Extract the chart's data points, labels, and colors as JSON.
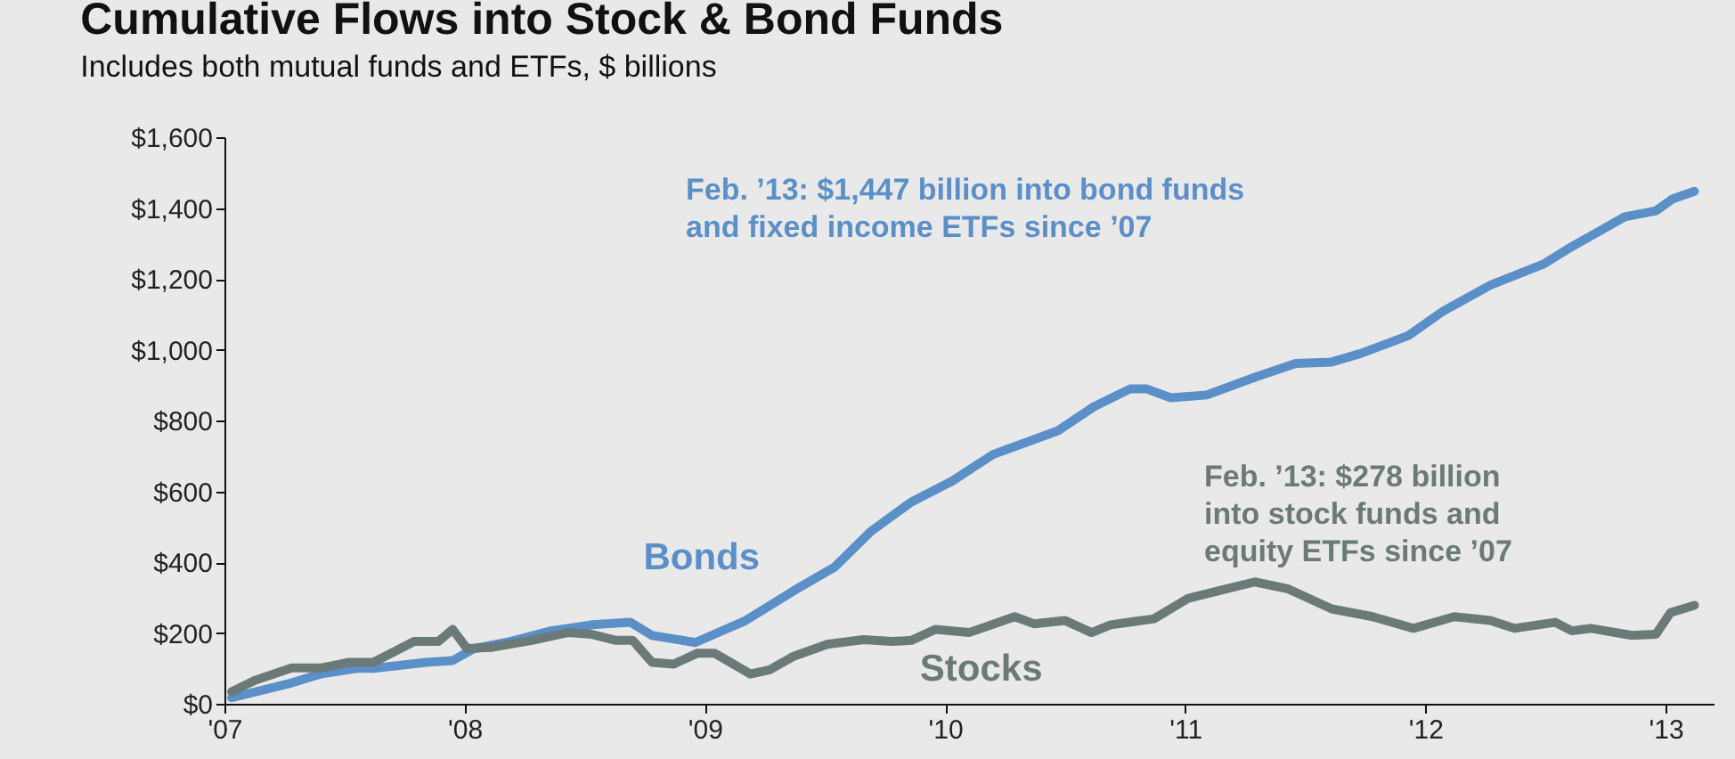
{
  "chart_data": {
    "type": "line",
    "title": "Cumulative Flows into Stock & Bond Funds",
    "subtitle": "Includes both mutual funds and ETFs, $ billions",
    "annotations": [
      "Feb. ’13: $1,447 billion into bond funds and fixed income ETFs since ’07",
      "Feb. ’13: $278 billion into stock funds and equity ETFs since ’07"
    ],
    "xlim": [
      2007,
      2013.2
    ],
    "xticks": [
      {
        "value": 2007,
        "label": "'07"
      },
      {
        "value": 2008,
        "label": "'08"
      },
      {
        "value": 2009,
        "label": "'09"
      },
      {
        "value": 2010,
        "label": "'10"
      },
      {
        "value": 2011,
        "label": "'11"
      },
      {
        "value": 2012,
        "label": "'12"
      },
      {
        "value": 2013,
        "label": "'13"
      }
    ],
    "ylim": [
      0,
      1600
    ],
    "yticks": [
      {
        "value": 0,
        "label": "$0"
      },
      {
        "value": 200,
        "label": "$200"
      },
      {
        "value": 400,
        "label": "$400"
      },
      {
        "value": 600,
        "label": "$600"
      },
      {
        "value": 800,
        "label": "$800"
      },
      {
        "value": 1000,
        "label": "$1,000"
      },
      {
        "value": 1200,
        "label": "$1,200"
      },
      {
        "value": 1400,
        "label": "$1,400"
      },
      {
        "value": 1600,
        "label": "$1,600"
      }
    ],
    "grid": false,
    "legend": false,
    "line_style": "solid",
    "marker": "none",
    "series": [
      {
        "name": "Bonds",
        "color": "#5b8fc7",
        "x": [
          2007.03,
          2007.28,
          2007.4,
          2007.55,
          2007.62,
          2007.84,
          2007.95,
          2008.04,
          2008.19,
          2008.36,
          2008.53,
          2008.69,
          2008.78,
          2008.96,
          2009.17,
          2009.37,
          2009.54,
          2009.69,
          2009.86,
          2010.03,
          2010.2,
          2010.47,
          2010.62,
          2010.77,
          2010.84,
          2010.94,
          2011.09,
          2011.29,
          2011.46,
          2011.61,
          2011.73,
          2011.93,
          2012.07,
          2012.27,
          2012.49,
          2012.61,
          2012.83,
          2012.96,
          2013.03,
          2013.12
        ],
        "values": [
          17,
          59,
          84,
          100,
          100,
          117,
          122,
          156,
          176,
          206,
          223,
          230,
          193,
          173,
          235,
          319,
          386,
          486,
          570,
          629,
          704,
          771,
          839,
          889,
          889,
          864,
          872,
          922,
          961,
          965,
          989,
          1040,
          1107,
          1182,
          1241,
          1291,
          1375,
          1392,
          1426,
          1447
        ]
      },
      {
        "name": "Stocks",
        "color": "#6b7a78",
        "x": [
          2007.03,
          2007.13,
          2007.28,
          2007.4,
          2007.52,
          2007.62,
          2007.79,
          2007.89,
          2007.95,
          2008.01,
          2008.11,
          2008.28,
          2008.43,
          2008.53,
          2008.63,
          2008.7,
          2008.78,
          2008.87,
          2008.97,
          2009.04,
          2009.19,
          2009.27,
          2009.37,
          2009.51,
          2009.66,
          2009.78,
          2009.86,
          2009.96,
          2010.1,
          2010.29,
          2010.37,
          2010.5,
          2010.61,
          2010.69,
          2010.87,
          2011.01,
          2011.14,
          2011.29,
          2011.43,
          2011.61,
          2011.78,
          2011.95,
          2012.12,
          2012.27,
          2012.37,
          2012.54,
          2012.61,
          2012.69,
          2012.86,
          2012.96,
          2013.02,
          2013.12
        ],
        "values": [
          34,
          67,
          101,
          101,
          117,
          117,
          176,
          176,
          210,
          156,
          159,
          179,
          201,
          196,
          179,
          179,
          117,
          112,
          143,
          143,
          84,
          96,
          134,
          168,
          181,
          176,
          179,
          210,
          201,
          246,
          226,
          235,
          201,
          223,
          240,
          297,
          319,
          344,
          324,
          268,
          246,
          213,
          246,
          235,
          213,
          230,
          206,
          213,
          193,
          196,
          257,
          278
        ]
      }
    ]
  }
}
